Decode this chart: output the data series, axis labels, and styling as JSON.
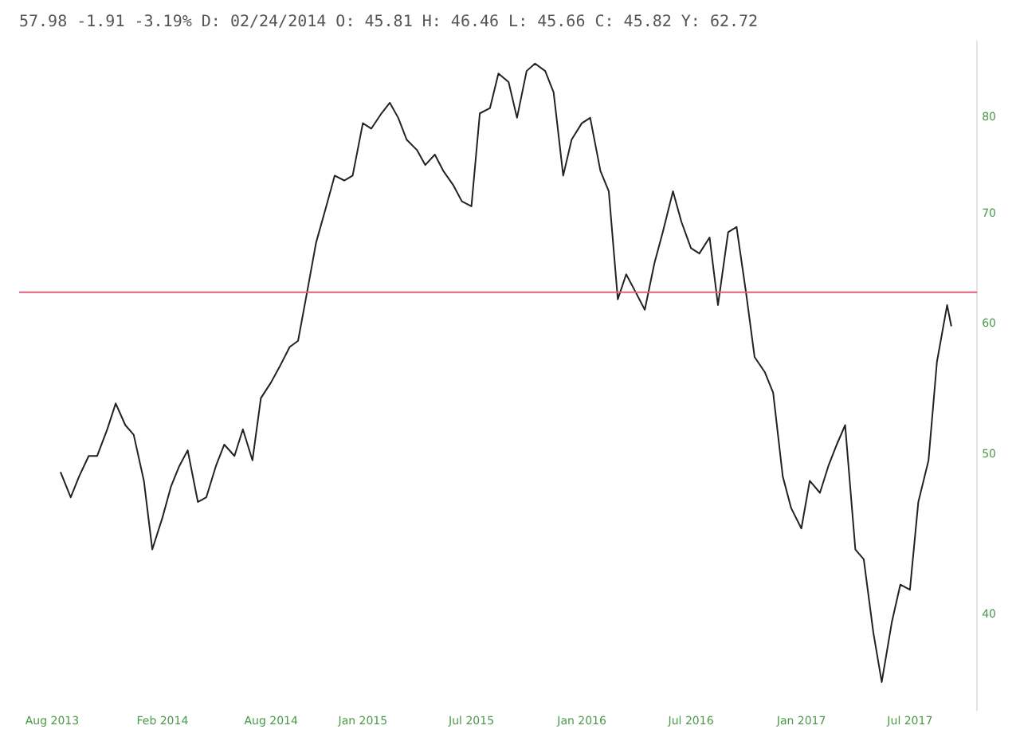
{
  "chart_data": {
    "type": "line",
    "title": "57.98 -1.91 -3.19% D: 02/24/2014 O: 45.81 H: 46.46 L: 45.66 C: 45.82 Y: 62.72",
    "x": [
      "2013-08-15",
      "2013-09-01",
      "2013-09-15",
      "2013-10-01",
      "2013-10-15",
      "2013-11-01",
      "2013-11-15",
      "2013-12-01",
      "2013-12-15",
      "2014-01-01",
      "2014-01-15",
      "2014-02-01",
      "2014-02-15",
      "2014-03-01",
      "2014-03-15",
      "2014-04-01",
      "2014-04-15",
      "2014-05-01",
      "2014-05-15",
      "2014-06-01",
      "2014-06-15",
      "2014-07-01",
      "2014-07-15",
      "2014-08-01",
      "2014-08-15",
      "2014-09-01",
      "2014-09-15",
      "2014-10-01",
      "2014-10-15",
      "2014-11-01",
      "2014-11-15",
      "2014-12-01",
      "2014-12-15",
      "2015-01-01",
      "2015-01-15",
      "2015-02-01",
      "2015-02-15",
      "2015-03-01",
      "2015-03-15",
      "2015-04-01",
      "2015-04-15",
      "2015-05-01",
      "2015-05-15",
      "2015-06-01",
      "2015-06-15",
      "2015-07-01",
      "2015-07-15",
      "2015-08-01",
      "2015-08-15",
      "2015-09-01",
      "2015-09-15",
      "2015-10-01",
      "2015-10-15",
      "2015-11-01",
      "2015-11-15",
      "2015-12-01",
      "2015-12-15",
      "2016-01-01",
      "2016-01-15",
      "2016-02-01",
      "2016-02-15",
      "2016-03-01",
      "2016-03-15",
      "2016-04-01",
      "2016-04-15",
      "2016-05-01",
      "2016-05-15",
      "2016-06-01",
      "2016-06-15",
      "2016-07-01",
      "2016-07-15",
      "2016-08-01",
      "2016-08-15",
      "2016-09-01",
      "2016-09-15",
      "2016-10-01",
      "2016-10-15",
      "2016-11-01",
      "2016-11-15",
      "2016-12-01",
      "2016-12-15",
      "2017-01-01",
      "2017-01-15",
      "2017-02-01",
      "2017-02-15",
      "2017-03-01",
      "2017-03-15",
      "2017-04-01",
      "2017-04-15",
      "2017-05-01",
      "2017-05-15",
      "2017-06-01",
      "2017-06-15",
      "2017-07-01",
      "2017-07-15",
      "2017-08-01",
      "2017-08-15",
      "2017-09-01",
      "2017-09-08"
    ],
    "series": [
      {
        "color": "#222222",
        "values": [
          48.8,
          47.1,
          48.5,
          49.9,
          49.9,
          51.8,
          53.7,
          52.1,
          51.4,
          48.2,
          43.8,
          45.8,
          47.8,
          49.2,
          50.3,
          46.8,
          47.1,
          49.2,
          50.7,
          49.9,
          51.8,
          49.6,
          54.1,
          55.3,
          56.5,
          58.1,
          58.6,
          63.0,
          67.2,
          70.7,
          73.8,
          73.3,
          73.8,
          79.4,
          78.8,
          80.5,
          81.7,
          80.0,
          77.6,
          76.5,
          74.9,
          76.0,
          74.3,
          72.8,
          71.2,
          70.7,
          80.5,
          81.1,
          85.1,
          84.1,
          80.0,
          85.4,
          86.3,
          85.4,
          82.9,
          73.8,
          77.6,
          79.4,
          80.0,
          74.3,
          72.2,
          62.1,
          64.3,
          62.6,
          61.2,
          65.3,
          68.2,
          72.2,
          69.2,
          66.7,
          66.2,
          67.7,
          61.6,
          68.2,
          68.7,
          62.6,
          57.3,
          56.1,
          54.5,
          48.5,
          46.4,
          45.1,
          48.2,
          47.4,
          49.2,
          50.7,
          52.1,
          43.8,
          43.2,
          39.0,
          36.4,
          39.6,
          41.7,
          41.4,
          46.8,
          49.6,
          56.9,
          61.6,
          59.8
        ]
      }
    ],
    "xlim": [
      "2013-06-07",
      "2017-10-21"
    ],
    "xticks": [
      {
        "value": "2013-08-01",
        "label": "Aug 2013"
      },
      {
        "value": "2014-02-01",
        "label": "Feb 2014"
      },
      {
        "value": "2014-08-01",
        "label": "Aug 2014"
      },
      {
        "value": "2015-01-01",
        "label": "Jan 2015"
      },
      {
        "value": "2015-07-01",
        "label": "Jul 2015"
      },
      {
        "value": "2016-01-01",
        "label": "Jan 2016"
      },
      {
        "value": "2016-07-01",
        "label": "Jul 2016"
      },
      {
        "value": "2017-01-01",
        "label": "Jan 2017"
      },
      {
        "value": "2017-07-01",
        "label": "Jul 2017"
      }
    ],
    "ylim": [
      35,
      89
    ],
    "yticks": [
      40,
      50,
      60,
      70,
      80
    ],
    "log": "y",
    "ref_lines": [
      {
        "axis": "y",
        "value": 62.72,
        "color": "#e0607a"
      }
    ],
    "grid": false,
    "legend": false,
    "marker": "none",
    "line_style": "solid"
  }
}
